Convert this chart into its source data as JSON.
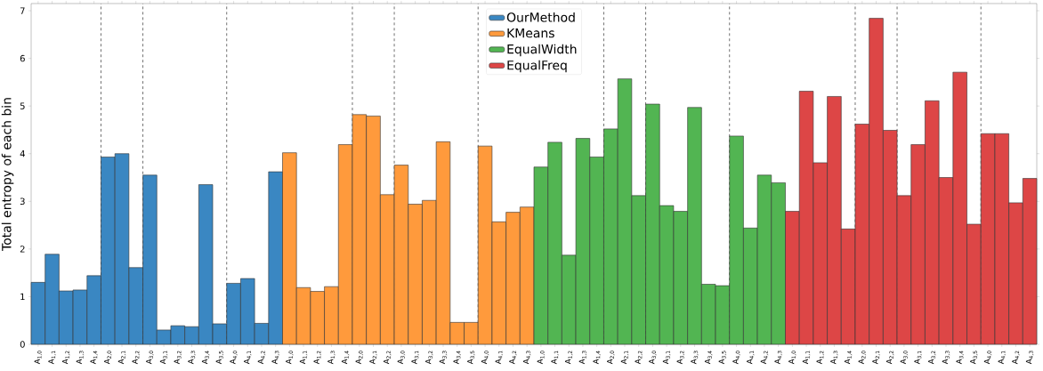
{
  "chart_data": {
    "type": "bar",
    "ylabel": "Total entropy of each bin",
    "categories": [
      "A$_{1,0}$",
      "A$_{1,1}$",
      "A$_{1,2}$",
      "A$_{1,3}$",
      "A$_{1,4}$",
      "A$_{2,0}$",
      "A$_{2,1}$",
      "A$_{2,2}$",
      "A$_{3,0}$",
      "A$_{3,1}$",
      "A$_{3,2}$",
      "A$_{3,3}$",
      "A$_{3,4}$",
      "A$_{3,5}$",
      "A$_{4,0}$",
      "A$_{4,1}$",
      "A$_{4,2}$",
      "A$_{4,3}$",
      "A$_{1,0}$",
      "A$_{1,1}$",
      "A$_{1,2}$",
      "A$_{1,3}$",
      "A$_{1,4}$",
      "A$_{2,0}$",
      "A$_{2,1}$",
      "A$_{2,2}$",
      "A$_{3,0}$",
      "A$_{3,1}$",
      "A$_{3,2}$",
      "A$_{3,3}$",
      "A$_{3,4}$",
      "A$_{3,5}$",
      "A$_{4,0}$",
      "A$_{4,1}$",
      "A$_{4,2}$",
      "A$_{4,3}$",
      "A$_{1,0}$",
      "A$_{1,1}$",
      "A$_{1,2}$",
      "A$_{1,3}$",
      "A$_{1,4}$",
      "A$_{2,0}$",
      "A$_{2,1}$",
      "A$_{2,2}$",
      "A$_{3,0}$",
      "A$_{3,1}$",
      "A$_{3,2}$",
      "A$_{3,3}$",
      "A$_{3,4}$",
      "A$_{3,5}$",
      "A$_{4,0}$",
      "A$_{4,1}$",
      "A$_{4,2}$",
      "A$_{4,3}$",
      "A$_{1,0}$",
      "A$_{1,1}$",
      "A$_{1,2}$",
      "A$_{1,3}$",
      "A$_{1,4}$",
      "A$_{2,0}$",
      "A$_{2,1}$",
      "A$_{2,2}$",
      "A$_{3,0}$",
      "A$_{3,1}$",
      "A$_{3,2}$",
      "A$_{3,3}$",
      "A$_{3,4}$",
      "A$_{3,5}$",
      "A$_{4,0}$",
      "A$_{4,1}$",
      "A$_{4,2}$",
      "A$_{4,3}$"
    ],
    "series": [
      {
        "name": "OurMethod",
        "color": "#3a87c2",
        "values": [
          1.3,
          1.89,
          1.12,
          1.14,
          1.44,
          3.93,
          4.0,
          1.61,
          3.55,
          0.3,
          0.39,
          0.37,
          3.35,
          0.43,
          1.28,
          1.38,
          0.44,
          3.62,
          null,
          null,
          null,
          null,
          null,
          null,
          null,
          null,
          null,
          null,
          null,
          null,
          null,
          null,
          null,
          null,
          null,
          null,
          null,
          null,
          null,
          null,
          null,
          null,
          null,
          null,
          null,
          null,
          null,
          null,
          null,
          null,
          null,
          null,
          null,
          null,
          null,
          null,
          null,
          null,
          null,
          null,
          null,
          null,
          null,
          null,
          null,
          null,
          null,
          null,
          null,
          null,
          null,
          null
        ]
      },
      {
        "name": "KMeans",
        "color": "#ff9a3c",
        "values": [
          null,
          null,
          null,
          null,
          null,
          null,
          null,
          null,
          null,
          null,
          null,
          null,
          null,
          null,
          null,
          null,
          null,
          null,
          4.02,
          1.19,
          1.11,
          1.21,
          4.19,
          4.82,
          4.79,
          3.14,
          3.76,
          2.94,
          3.02,
          4.25,
          0.46,
          0.46,
          4.16,
          2.57,
          2.77,
          2.88,
          null,
          null,
          null,
          null,
          null,
          null,
          null,
          null,
          null,
          null,
          null,
          null,
          null,
          null,
          null,
          null,
          null,
          null,
          null,
          null,
          null,
          null,
          null,
          null,
          null,
          null,
          null,
          null,
          null,
          null,
          null,
          null,
          null,
          null,
          null,
          null
        ]
      },
      {
        "name": "EqualWidth",
        "color": "#52b552",
        "values": [
          null,
          null,
          null,
          null,
          null,
          null,
          null,
          null,
          null,
          null,
          null,
          null,
          null,
          null,
          null,
          null,
          null,
          null,
          null,
          null,
          null,
          null,
          null,
          null,
          null,
          null,
          null,
          null,
          null,
          null,
          null,
          null,
          null,
          null,
          null,
          null,
          3.72,
          4.24,
          1.87,
          4.32,
          3.93,
          4.52,
          5.57,
          3.12,
          5.04,
          2.91,
          2.79,
          4.97,
          1.26,
          1.23,
          4.37,
          2.44,
          3.55,
          3.39,
          null,
          null,
          null,
          null,
          null,
          null,
          null,
          null,
          null,
          null,
          null,
          null,
          null,
          null,
          null,
          null,
          null,
          null
        ]
      },
      {
        "name": "EqualFreq",
        "color": "#dd4646",
        "values": [
          null,
          null,
          null,
          null,
          null,
          null,
          null,
          null,
          null,
          null,
          null,
          null,
          null,
          null,
          null,
          null,
          null,
          null,
          null,
          null,
          null,
          null,
          null,
          null,
          null,
          null,
          null,
          null,
          null,
          null,
          null,
          null,
          null,
          null,
          null,
          null,
          null,
          null,
          null,
          null,
          null,
          null,
          null,
          null,
          null,
          null,
          null,
          null,
          null,
          null,
          null,
          null,
          null,
          null,
          2.79,
          5.31,
          3.81,
          5.2,
          2.42,
          4.62,
          6.84,
          4.49,
          3.12,
          4.19,
          5.11,
          3.5,
          5.71,
          2.52,
          4.42,
          4.42,
          2.97,
          3.48
        ]
      }
    ],
    "ylim": [
      0,
      7.15
    ],
    "yticks": [
      0,
      1,
      2,
      3,
      4,
      5,
      6,
      7
    ],
    "legend": "top",
    "grid": false
  }
}
